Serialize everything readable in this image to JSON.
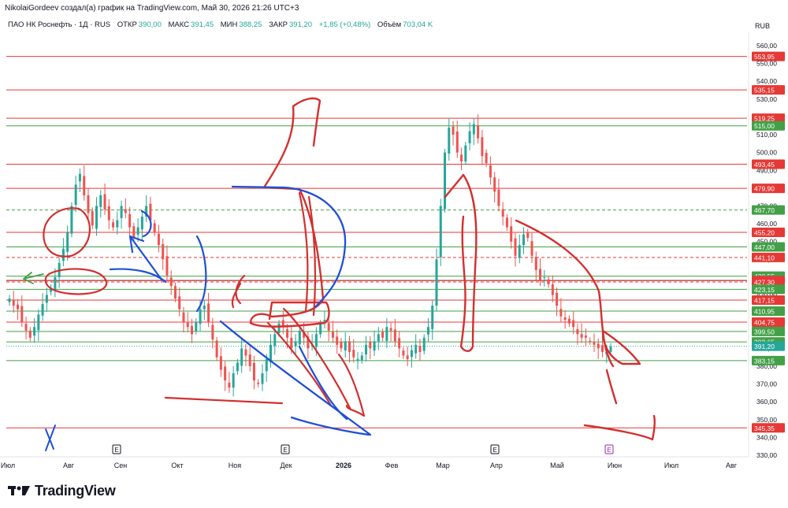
{
  "header": {
    "author_line": "NikolaiGordeev создал(а) график на TradingView.com, Май 30, 2026 21:26 UTC+3"
  },
  "legend": {
    "symbol": "ПАО НК Роснефть · 1Д · RUS",
    "open_label": "ОТКР",
    "open_value": "390,00",
    "high_label": "МАКС",
    "high_value": "391,45",
    "low_label": "МИН",
    "low_value": "388,25",
    "close_label": "ЗАКР",
    "close_value": "391,20",
    "change": "+1,85 (+0,48%)",
    "volume_label": "Объём",
    "volume_value": "703,04 K"
  },
  "axis": {
    "currency": "RUB"
  },
  "brand": {
    "name": "TradingView"
  },
  "chart_data": {
    "type": "candlestick",
    "y_axis": {
      "min": 330,
      "max": 560,
      "step": 10,
      "ticks": [
        "560,00",
        "550,00",
        "540,00",
        "530,00",
        "520,00",
        "510,00",
        "500,00",
        "490,00",
        "480,00",
        "470,00",
        "460,00",
        "450,00",
        "440,00",
        "430,00",
        "420,00",
        "410,00",
        "400,00",
        "390,00",
        "380,00",
        "370,00",
        "360,00",
        "350,00",
        "340,00",
        "330,00"
      ]
    },
    "x_axis": {
      "ticks": [
        "Июл",
        "Авг",
        "Сен",
        "Окт",
        "Ноя",
        "Дек",
        "2026",
        "Фев",
        "Мар",
        "Апр",
        "Май",
        "Июн",
        "Июл",
        "Авг"
      ],
      "event_markers": [
        "E",
        "E",
        "E",
        "E"
      ]
    },
    "horizontal_levels": [
      {
        "price": 553.95,
        "label": "553,95",
        "color": "#e53935",
        "style": "solid"
      },
      {
        "price": 535.15,
        "label": "535,15",
        "color": "#e53935",
        "style": "solid"
      },
      {
        "price": 519.25,
        "label": "519,25",
        "color": "#e53935",
        "style": "solid"
      },
      {
        "price": 515.0,
        "label": "515,00",
        "color": "#43a047",
        "style": "solid"
      },
      {
        "price": 493.45,
        "label": "493,45",
        "color": "#e53935",
        "style": "solid"
      },
      {
        "price": 479.9,
        "label": "479,90",
        "color": "#e53935",
        "style": "solid"
      },
      {
        "price": 467.7,
        "label": "467,70",
        "color": "#43a047",
        "style": "dashed"
      },
      {
        "price": 455.2,
        "label": "455,20",
        "color": "#e53935",
        "style": "solid"
      },
      {
        "price": 447.0,
        "label": "447,00",
        "color": "#43a047",
        "style": "solid"
      },
      {
        "price": 441.1,
        "label": "441,10",
        "color": "#e53935",
        "style": "dashed"
      },
      {
        "price": 430.55,
        "label": "430,55",
        "color": "#43a047",
        "style": "solid"
      },
      {
        "price": 428.25,
        "label": "428,25",
        "color": "#787b86",
        "style": "solid"
      },
      {
        "price": 428.0,
        "label": "428,00",
        "color": "#e53935",
        "style": "solid"
      },
      {
        "price": 427.3,
        "label": "427,30",
        "color": "#e53935",
        "style": "dashed"
      },
      {
        "price": 423.15,
        "label": "423,15",
        "color": "#43a047",
        "style": "solid"
      },
      {
        "price": 417.15,
        "label": "417,15",
        "color": "#e53935",
        "style": "solid"
      },
      {
        "price": 410.95,
        "label": "410,95",
        "color": "#43a047",
        "style": "solid"
      },
      {
        "price": 404.75,
        "label": "404,75",
        "color": "#e53935",
        "style": "solid"
      },
      {
        "price": 399.5,
        "label": "399,50",
        "color": "#43a047",
        "style": "solid"
      },
      {
        "price": 393.65,
        "label": "393,65",
        "color": "#43a047",
        "style": "solid"
      },
      {
        "price": 391.2,
        "label": "391,20",
        "color": "#26a69a",
        "style": "dotted"
      },
      {
        "price": 383.15,
        "label": "383,15",
        "color": "#43a047",
        "style": "solid"
      },
      {
        "price": 345.35,
        "label": "345,35",
        "color": "#e53935",
        "style": "solid"
      }
    ],
    "close_path": [
      418,
      414,
      412,
      405,
      400,
      396,
      402,
      409,
      415,
      420,
      424,
      430,
      438,
      446,
      455,
      470,
      482,
      488,
      476,
      466,
      459,
      470,
      476,
      468,
      462,
      458,
      462,
      470,
      466,
      458,
      452,
      458,
      464,
      470,
      462,
      455,
      448,
      440,
      431,
      425,
      418,
      412,
      405,
      402,
      398,
      405,
      412,
      414,
      405,
      395,
      385,
      378,
      372,
      368,
      376,
      382,
      390,
      386,
      380,
      372,
      370,
      376,
      384,
      392,
      398,
      404,
      402,
      396,
      390,
      394,
      400,
      396,
      390,
      392,
      398,
      404,
      406,
      400,
      396,
      392,
      390,
      394,
      388,
      385,
      384,
      386,
      392,
      390,
      394,
      398,
      396,
      402,
      400,
      394,
      390,
      386,
      384,
      389,
      392,
      388,
      396,
      402,
      414,
      440,
      470,
      500,
      514,
      510,
      500,
      495,
      504,
      512,
      516,
      508,
      498,
      494,
      486,
      478,
      470,
      464,
      458,
      450,
      442,
      448,
      454,
      452,
      442,
      434,
      428,
      430,
      426,
      420,
      414,
      408,
      406,
      404,
      402,
      398,
      396,
      396,
      394,
      392,
      390,
      388,
      388,
      391
    ]
  }
}
